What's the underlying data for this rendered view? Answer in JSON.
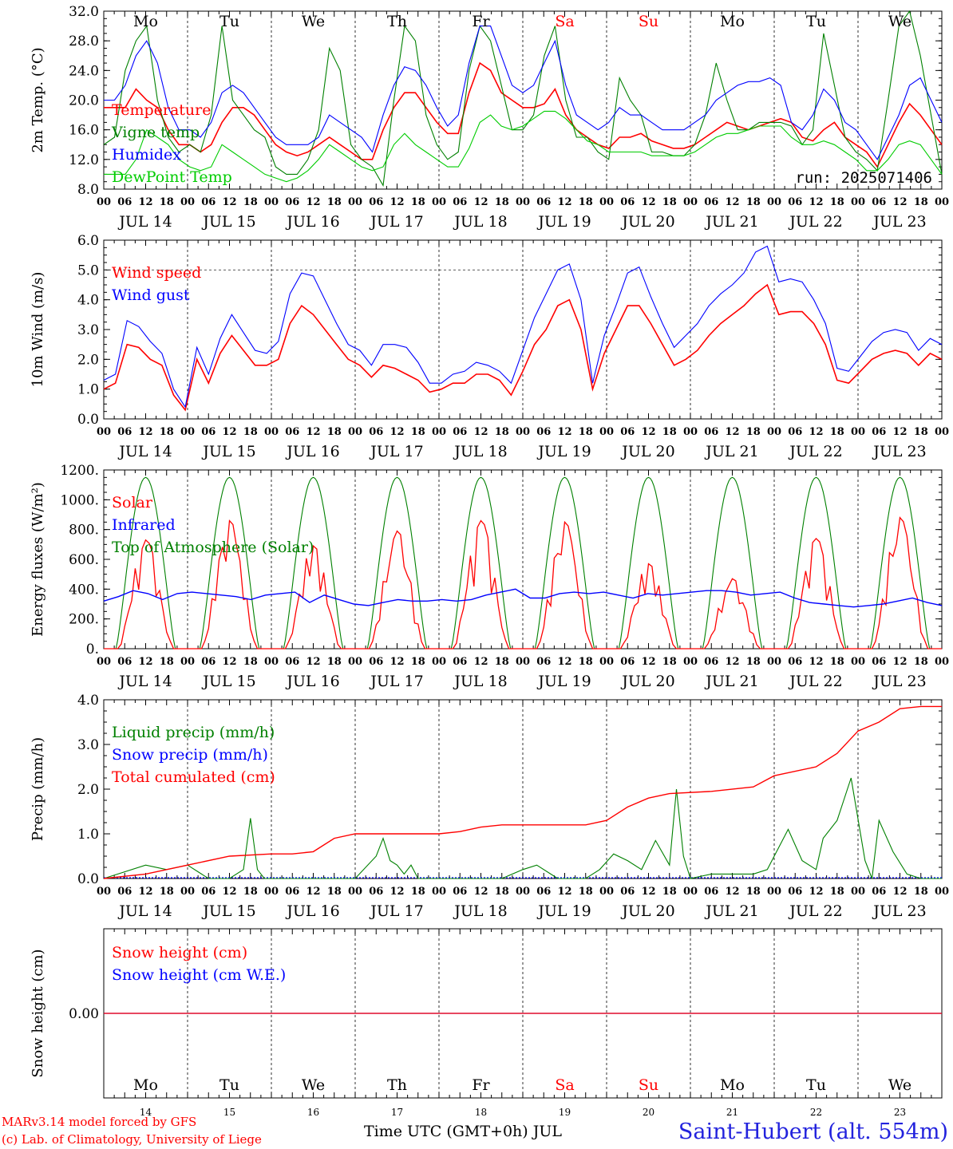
{
  "figure": {
    "run_label": "run: 2025071406",
    "footer_left_1": "MARv3.14 model forced by GFS",
    "footer_left_2": "(c) Lab. of Climatology, University of Liege",
    "footer_center": "Time UTC (GMT+0h) JUL",
    "footer_right": "Saint-Hubert (alt. 554m)",
    "colors": {
      "red": "#ff0000",
      "green": "#008000",
      "blue": "#0000ff",
      "lightgreen": "#00cc00",
      "sitelabel": "#2222dd"
    }
  },
  "time_axis": {
    "hour_ticks": [
      "00",
      "06",
      "12",
      "18"
    ],
    "end_tick": "00",
    "date_labels": [
      "JUL 14",
      "JUL 15",
      "JUL 16",
      "JUL 17",
      "JUL 18",
      "JUL 19",
      "JUL 20",
      "JUL 21",
      "JUL 22",
      "JUL 23"
    ],
    "weekdays": [
      "Mo",
      "Tu",
      "We",
      "Th",
      "Fr",
      "Sa",
      "Su",
      "Mo",
      "Tu",
      "We"
    ],
    "weekday_colors": [
      "#000000",
      "#000000",
      "#000000",
      "#000000",
      "#000000",
      "#ff0000",
      "#ff0000",
      "#000000",
      "#000000",
      "#000000"
    ],
    "day_numbers": [
      "14",
      "15",
      "16",
      "17",
      "18",
      "19",
      "20",
      "21",
      "22",
      "23"
    ]
  },
  "chart_data": [
    {
      "type": "line",
      "ylabel": "2m Temp. (°C)",
      "ylim": [
        8,
        32
      ],
      "yticks": [
        "8.0",
        "12.0",
        "16.0",
        "20.0",
        "24.0",
        "28.0",
        "32.0"
      ],
      "x": "hours since JUL 14 00 UTC, 3-hourly 0..240",
      "series": [
        {
          "name": "Temperature",
          "color": "#ff0000",
          "values": [
            19,
            19,
            19,
            21.5,
            20,
            19,
            16,
            14,
            14,
            13,
            14,
            17,
            19,
            19,
            18,
            16,
            14,
            13,
            12.5,
            13,
            14,
            15,
            14,
            13,
            12,
            12,
            16,
            19,
            21,
            21,
            19,
            17,
            15.5,
            15.5,
            21,
            25,
            24,
            21,
            20,
            19,
            19,
            19.5,
            21.5,
            18,
            16,
            15,
            14,
            13.5,
            15,
            15,
            15.5,
            14.5,
            14,
            13.5,
            13.5,
            14,
            15,
            16,
            17,
            16.5,
            16,
            16.5,
            17,
            17.5,
            17,
            15,
            14.5,
            16,
            17,
            15,
            14,
            13,
            11,
            14,
            17,
            19.5,
            18,
            16,
            14
          ]
        },
        {
          "name": "Vigne temp",
          "color": "#008000",
          "values": [
            14,
            15,
            24,
            28,
            30,
            20,
            15,
            13,
            14,
            13,
            18,
            30,
            20,
            18,
            16,
            15,
            11,
            10,
            10,
            12,
            16,
            27,
            24,
            14,
            12,
            11,
            8.5,
            20,
            30,
            28,
            18,
            14,
            12,
            13,
            24,
            30,
            28,
            22,
            16,
            16,
            18,
            26,
            30,
            20,
            15,
            15,
            13,
            12,
            23,
            20,
            18,
            13,
            13,
            12.5,
            12.5,
            14,
            18,
            25,
            20,
            16,
            16,
            17,
            17,
            17,
            16.5,
            14,
            16,
            29,
            22,
            15,
            13,
            12,
            10.5,
            20,
            30,
            32,
            26,
            18,
            10
          ]
        },
        {
          "name": "Humidex",
          "color": "#0000ff",
          "values": [
            20,
            20,
            22,
            26,
            28,
            25,
            19,
            16,
            16,
            15,
            17,
            21,
            22,
            21,
            19,
            17,
            15,
            14,
            14,
            14,
            15,
            18,
            17,
            16,
            15,
            13,
            18,
            22,
            24.5,
            24,
            22,
            19,
            16.5,
            18,
            25,
            30,
            30,
            26,
            22,
            21,
            22,
            25,
            28,
            22,
            18,
            17,
            16,
            17,
            19,
            18,
            18,
            17,
            16,
            16,
            16,
            17,
            18,
            20,
            21,
            22,
            22.5,
            22.5,
            23,
            22,
            17,
            16,
            18,
            21.5,
            20,
            17,
            16,
            14,
            12,
            15,
            18,
            22,
            23,
            20,
            17
          ]
        },
        {
          "name": "DewPoint Temp",
          "color": "#00cc00",
          "values": [
            10,
            10,
            10,
            12,
            16,
            15,
            14,
            12,
            11,
            10.5,
            11,
            14,
            13,
            12,
            11,
            10,
            9.5,
            9,
            9.5,
            10.5,
            12,
            14,
            13,
            12,
            11,
            10.5,
            11,
            14,
            15.5,
            14,
            13,
            12,
            11,
            11,
            13.5,
            17,
            18,
            16.5,
            16,
            16.5,
            17.5,
            18.5,
            18.5,
            17.5,
            16,
            14.5,
            14,
            13,
            13,
            13,
            13,
            12.5,
            12.5,
            12.5,
            12.5,
            13,
            14,
            15,
            15.5,
            15.5,
            16,
            16.5,
            16.5,
            16.5,
            15,
            14,
            14,
            14.5,
            14,
            13,
            12,
            10.5,
            10.5,
            12,
            14,
            14.5,
            14,
            12,
            10
          ]
        }
      ]
    },
    {
      "type": "line",
      "ylabel": "10m Wind (m/s)",
      "ylim": [
        0,
        6
      ],
      "yticks": [
        "0.0",
        "1.0",
        "2.0",
        "3.0",
        "4.0",
        "5.0",
        "6.0"
      ],
      "reference_line": 5,
      "series": [
        {
          "name": "Wind speed",
          "color": "#ff0000",
          "values": [
            1,
            1.2,
            2.5,
            2.4,
            2,
            1.8,
            0.8,
            0.3,
            2,
            1.2,
            2.2,
            2.8,
            2.3,
            1.8,
            1.8,
            2,
            3.2,
            3.8,
            3.5,
            3,
            2.5,
            2,
            1.8,
            1.4,
            1.8,
            1.7,
            1.5,
            1.3,
            0.9,
            1,
            1.2,
            1.2,
            1.5,
            1.5,
            1.3,
            0.8,
            1.6,
            2.5,
            3,
            3.8,
            4,
            3,
            1,
            2.2,
            3,
            3.8,
            3.8,
            3.2,
            2.5,
            1.8,
            2,
            2.3,
            2.8,
            3.2,
            3.5,
            3.8,
            4.2,
            4.5,
            3.5,
            3.6,
            3.6,
            3.2,
            2.5,
            1.3,
            1.2,
            1.6,
            2,
            2.2,
            2.3,
            2.2,
            1.8,
            2.2,
            2
          ]
        },
        {
          "name": "Wind gust",
          "color": "#0000ff",
          "values": [
            1.3,
            1.5,
            3.3,
            3.1,
            2.6,
            2.2,
            1,
            0.4,
            2.4,
            1.5,
            2.7,
            3.5,
            2.9,
            2.3,
            2.2,
            2.6,
            4.2,
            4.9,
            4.8,
            4,
            3.2,
            2.5,
            2.3,
            1.8,
            2.5,
            2.5,
            2.4,
            1.9,
            1.2,
            1.2,
            1.5,
            1.6,
            1.9,
            1.8,
            1.6,
            1.2,
            2.3,
            3.4,
            4.2,
            5,
            5.2,
            4,
            1.2,
            2.8,
            3.8,
            4.9,
            5.1,
            4.1,
            3.2,
            2.4,
            2.8,
            3.2,
            3.8,
            4.2,
            4.5,
            4.9,
            5.6,
            5.8,
            4.6,
            4.7,
            4.6,
            4,
            3.2,
            1.7,
            1.6,
            2.1,
            2.6,
            2.9,
            3,
            2.9,
            2.3,
            2.7,
            2.5
          ]
        }
      ]
    },
    {
      "type": "line",
      "ylabel": "Energy fluxes (W/m²)",
      "ylim": [
        0,
        1200
      ],
      "yticks": [
        "0.",
        "200.",
        "400.",
        "600.",
        "800.",
        "1000.",
        "1200."
      ],
      "series": [
        {
          "name": "Solar",
          "color": "#ff0000",
          "values": [
            0,
            0,
            0,
            0,
            0,
            0,
            0,
            0,
            20,
            150,
            380,
            50,
            420,
            700,
            720,
            460,
            80,
            380,
            40,
            0,
            0,
            0,
            0,
            0,
            0,
            0,
            0,
            0,
            0,
            0,
            0,
            0,
            0,
            0,
            0,
            0,
            0,
            0,
            0,
            0,
            0,
            0,
            0,
            0,
            0,
            0,
            0,
            0,
            0,
            0,
            0,
            0,
            0,
            0,
            0,
            0,
            0,
            0,
            0,
            0,
            0,
            0,
            0,
            0,
            0,
            0,
            0,
            0,
            0,
            0,
            0,
            0,
            0,
            0
          ]
        },
        {
          "name": "Infrared",
          "color": "#0000ff",
          "values": [
            320,
            350,
            390,
            370,
            330,
            370,
            380,
            370,
            360,
            350,
            330,
            360,
            370,
            380,
            310,
            360,
            330,
            300,
            290,
            310,
            330,
            320,
            320,
            330,
            320,
            330,
            360,
            380,
            400,
            340,
            340,
            370,
            380,
            370,
            380,
            360,
            340,
            370,
            360,
            370,
            380,
            390,
            390,
            380,
            360,
            370,
            380,
            340,
            310,
            300,
            290,
            280,
            290,
            300,
            320,
            340,
            310,
            290
          ]
        },
        {
          "name": "Top of Atmosphere (Solar)",
          "color": "#008000",
          "peak": 1150
        }
      ],
      "solar_daily_peaks": [
        730,
        860,
        690,
        790,
        860,
        850,
        570,
        470,
        740,
        880
      ]
    },
    {
      "type": "line",
      "ylabel": "Precip (mm/h)",
      "ylim": [
        0,
        4
      ],
      "yticks": [
        "0.0",
        "1.0",
        "2.0",
        "3.0",
        "4.0"
      ],
      "series": [
        {
          "name": "Liquid precip (mm/h)",
          "color": "#008000",
          "points": [
            [
              0,
              0
            ],
            [
              12,
              0.3
            ],
            [
              18,
              0.2
            ],
            [
              24,
              0.3
            ],
            [
              28,
              0.1
            ],
            [
              30,
              0
            ],
            [
              36,
              0
            ],
            [
              40,
              0.2
            ],
            [
              42,
              1.35
            ],
            [
              44,
              0.2
            ],
            [
              46,
              0
            ],
            [
              72,
              0
            ],
            [
              78,
              0.5
            ],
            [
              80,
              0.9
            ],
            [
              82,
              0.4
            ],
            [
              84,
              0.3
            ],
            [
              86,
              0.1
            ],
            [
              88,
              0.3
            ],
            [
              90,
              0
            ],
            [
              114,
              0
            ],
            [
              120,
              0.2
            ],
            [
              124,
              0.3
            ],
            [
              128,
              0.1
            ],
            [
              130,
              0
            ],
            [
              138,
              0
            ],
            [
              142,
              0.2
            ],
            [
              146,
              0.55
            ],
            [
              150,
              0.4
            ],
            [
              154,
              0.2
            ],
            [
              158,
              0.85
            ],
            [
              162,
              0.3
            ],
            [
              164,
              2
            ],
            [
              166,
              0.5
            ],
            [
              168,
              0
            ],
            [
              174,
              0.1
            ],
            [
              186,
              0.1
            ],
            [
              190,
              0.2
            ],
            [
              192,
              0.5
            ],
            [
              196,
              1.1
            ],
            [
              200,
              0.4
            ],
            [
              204,
              0.2
            ],
            [
              206,
              0.9
            ],
            [
              210,
              1.3
            ],
            [
              214,
              2.25
            ],
            [
              218,
              0.4
            ],
            [
              220,
              0
            ],
            [
              222,
              1.3
            ],
            [
              226,
              0.6
            ],
            [
              230,
              0.1
            ],
            [
              234,
              0
            ],
            [
              240,
              0
            ]
          ]
        },
        {
          "name": "Snow precip (mm/h)",
          "color": "#0000ff",
          "values": [
            0
          ]
        },
        {
          "name": "Total cumulated (cm)",
          "color": "#ff0000",
          "points": [
            [
              0,
              0
            ],
            [
              12,
              0.1
            ],
            [
              24,
              0.3
            ],
            [
              36,
              0.5
            ],
            [
              48,
              0.55
            ],
            [
              54,
              0.55
            ],
            [
              60,
              0.6
            ],
            [
              66,
              0.9
            ],
            [
              72,
              1
            ],
            [
              96,
              1
            ],
            [
              102,
              1.05
            ],
            [
              108,
              1.15
            ],
            [
              114,
              1.2
            ],
            [
              138,
              1.2
            ],
            [
              144,
              1.3
            ],
            [
              150,
              1.6
            ],
            [
              156,
              1.8
            ],
            [
              162,
              1.9
            ],
            [
              174,
              1.95
            ],
            [
              186,
              2.05
            ],
            [
              192,
              2.3
            ],
            [
              204,
              2.5
            ],
            [
              210,
              2.8
            ],
            [
              216,
              3.3
            ],
            [
              222,
              3.5
            ],
            [
              228,
              3.8
            ],
            [
              234,
              3.85
            ],
            [
              240,
              3.85
            ]
          ]
        }
      ]
    },
    {
      "type": "line",
      "ylabel": "Snow height (cm)",
      "yticks": [
        "0.00"
      ],
      "series": [
        {
          "name": "Snow height (cm)",
          "color": "#ff0000",
          "values": [
            0,
            0
          ]
        },
        {
          "name": "Snow height (cm W.E.)",
          "color": "#0000ff",
          "values": [
            0,
            0
          ]
        }
      ]
    }
  ]
}
